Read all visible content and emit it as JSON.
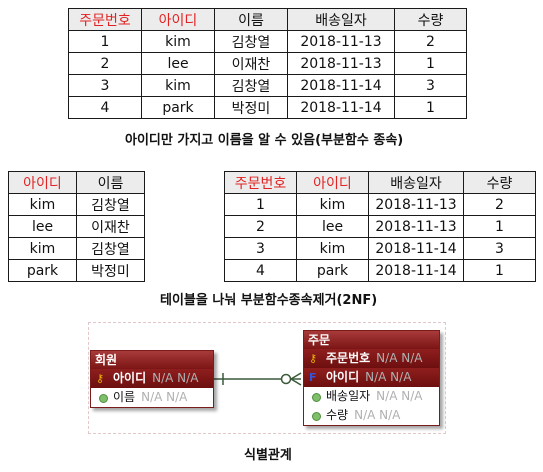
{
  "table_order": {
    "headers": [
      {
        "label": "주문번호",
        "key": true
      },
      {
        "label": "아이디",
        "key": true
      },
      {
        "label": "이름",
        "key": false
      },
      {
        "label": "배송일자",
        "key": false
      },
      {
        "label": "수량",
        "key": false
      }
    ],
    "rows": [
      [
        "1",
        "kim",
        "김창열",
        "2018-11-13",
        "2"
      ],
      [
        "2",
        "lee",
        "이재찬",
        "2018-11-13",
        "1"
      ],
      [
        "3",
        "kim",
        "김창열",
        "2018-11-14",
        "3"
      ],
      [
        "4",
        "park",
        "박정미",
        "2018-11-14",
        "1"
      ]
    ],
    "caption": "아이디만 가지고 이름을 알 수 있음(부분함수 종속)"
  },
  "table_member": {
    "headers": [
      {
        "label": "아이디",
        "key": true
      },
      {
        "label": "이름",
        "key": false
      }
    ],
    "rows": [
      [
        "kim",
        "김창열"
      ],
      [
        "lee",
        "이재찬"
      ],
      [
        "kim",
        "김창열"
      ],
      [
        "park",
        "박정미"
      ]
    ]
  },
  "table_order2": {
    "headers": [
      {
        "label": "주문번호",
        "key": true
      },
      {
        "label": "아이디",
        "key": true
      },
      {
        "label": "배송일자",
        "key": false
      },
      {
        "label": "수량",
        "key": false
      }
    ],
    "rows": [
      [
        "1",
        "kim",
        "2018-11-13",
        "2"
      ],
      [
        "2",
        "lee",
        "2018-11-13",
        "1"
      ],
      [
        "3",
        "kim",
        "2018-11-14",
        "3"
      ],
      [
        "4",
        "park",
        "2018-11-14",
        "1"
      ]
    ]
  },
  "caption2": "테이블을 나눠 부분함수종속제거(2NF)",
  "erd": {
    "member": {
      "title": "회원",
      "attrs": [
        {
          "name": "아이디",
          "kind": "pk",
          "na": "N/A N/A"
        },
        {
          "name": "이름",
          "kind": "plain",
          "na": "N/A N/A"
        }
      ]
    },
    "order": {
      "title": "주문",
      "attrs": [
        {
          "name": "주문번호",
          "kind": "pk",
          "na": "N/A N/A"
        },
        {
          "name": "아이디",
          "kind": "fk",
          "na": "N/A N/A"
        },
        {
          "name": "배송일자",
          "kind": "plain",
          "na": "N/A N/A"
        },
        {
          "name": "수량",
          "kind": "plain",
          "na": "N/A N/A"
        }
      ]
    },
    "caption": "식별관계",
    "colors": {
      "entity": "#7b1515",
      "relation": "#3a5a3a"
    }
  }
}
